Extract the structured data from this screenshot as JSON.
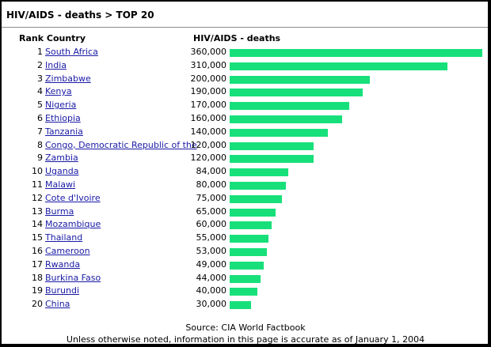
{
  "header": {
    "title": "HIV/AIDS - deaths > TOP 20"
  },
  "table": {
    "col_rank_country": "Rank Country",
    "col_value": "HIV/AIDS - deaths"
  },
  "footer": {
    "source": "Source: CIA World Factbook",
    "note": "Unless otherwise noted, information in this page is accurate as of January 1, 2004"
  },
  "colors": {
    "bar": "#17e07b",
    "link": "#1a1aa6"
  },
  "chart_data": {
    "type": "bar",
    "title": "HIV/AIDS - deaths > TOP 20",
    "orientation": "horizontal",
    "xlabel": "",
    "ylabel": "",
    "xlim": [
      0,
      360000
    ],
    "grid": false,
    "categories": [
      "South Africa",
      "India",
      "Zimbabwe",
      "Kenya",
      "Nigeria",
      "Ethiopia",
      "Tanzania",
      "Congo, Democratic Republic of the",
      "Zambia",
      "Uganda",
      "Malawi",
      "Cote d'Ivoire",
      "Burma",
      "Mozambique",
      "Thailand",
      "Cameroon",
      "Rwanda",
      "Burkina Faso",
      "Burundi",
      "China"
    ],
    "ranks": [
      1,
      2,
      3,
      4,
      5,
      6,
      7,
      8,
      9,
      10,
      11,
      12,
      13,
      14,
      15,
      16,
      17,
      18,
      19,
      20
    ],
    "values": [
      360000,
      310000,
      200000,
      190000,
      170000,
      160000,
      140000,
      120000,
      120000,
      84000,
      80000,
      75000,
      65000,
      60000,
      55000,
      53000,
      49000,
      44000,
      40000,
      30000
    ],
    "value_labels": [
      "360,000",
      "310,000",
      "200,000",
      "190,000",
      "170,000",
      "160,000",
      "140,000",
      "120,000",
      "120,000",
      "84,000",
      "80,000",
      "75,000",
      "65,000",
      "60,000",
      "55,000",
      "53,000",
      "49,000",
      "44,000",
      "40,000",
      "30,000"
    ]
  }
}
